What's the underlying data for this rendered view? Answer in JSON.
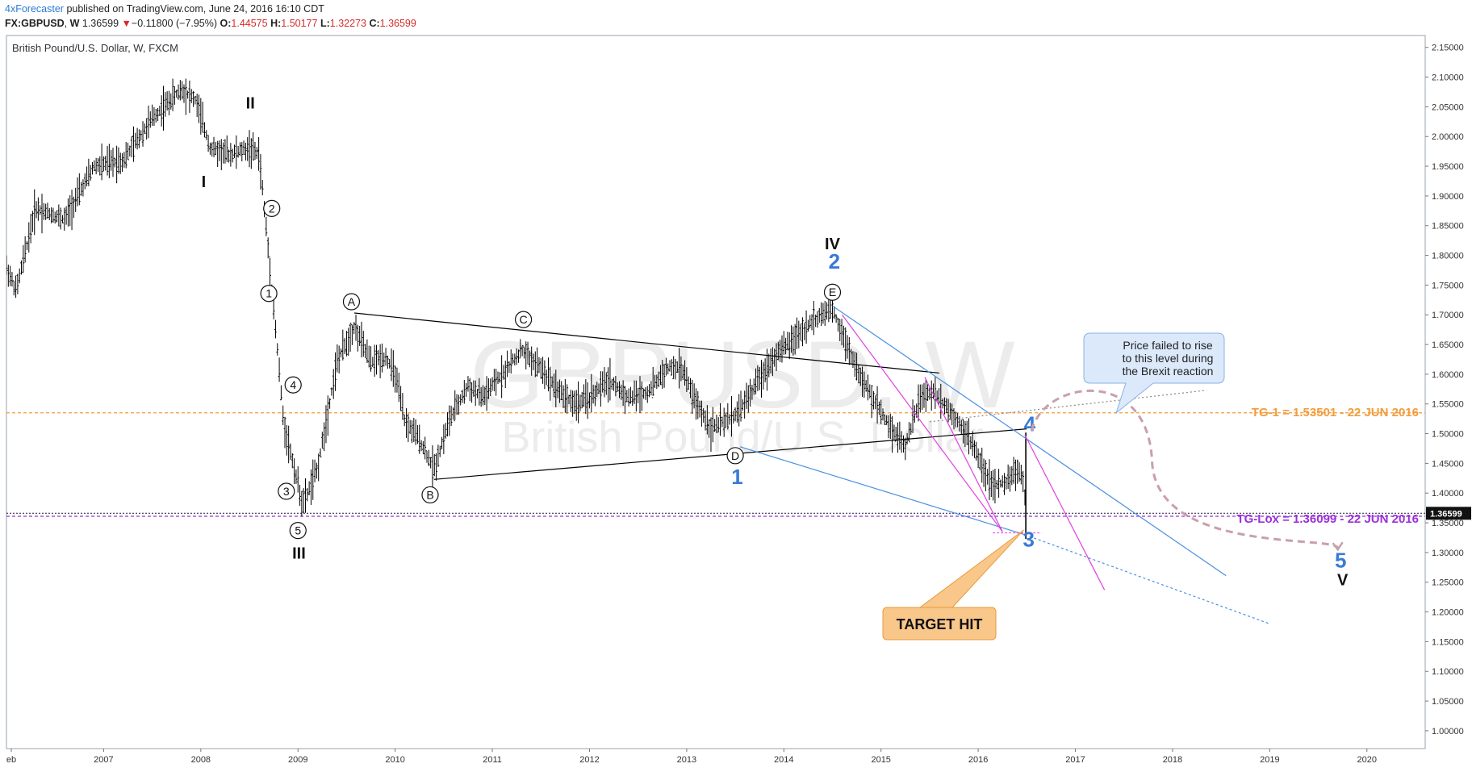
{
  "header": {
    "author": "4xForecaster",
    "published_text": "published on TradingView.com, June 24, 2016 16:10 CDT",
    "symbol": "FX:GBPUSD",
    "timeframe": "W",
    "last": "1.36599",
    "down_arrow": "▼",
    "change": "−0.11800 (−7.95%)",
    "o_label": "O:",
    "o_value": "1.44575",
    "h_label": "H:",
    "h_value": "1.50177",
    "l_label": "L:",
    "l_value": "1.32273",
    "c_label": "C:",
    "c_value": "1.36599"
  },
  "colors": {
    "candle": "#000000",
    "trendline_black": "#000000",
    "channel_blue": "#4a90e2",
    "magenta": "#e040e0",
    "orange_line": "#f39c3b",
    "purple_line": "#9b30d9",
    "wave_blue": "#3a7bd5",
    "arc": "#c9a0a8"
  },
  "chart_data": {
    "type": "candlestick",
    "title": "British Pound/U.S. Dollar, W, FXCM",
    "watermark_symbol": "GBPUSD, W",
    "watermark_name": "British Pound/U.S. Dollar",
    "xlabel": "",
    "ylabel": "",
    "x_range": [
      2006.0,
      2020.6
    ],
    "ylim": [
      0.97,
      2.17
    ],
    "x_ticks": [
      "eb",
      "2007",
      "2008",
      "2009",
      "2010",
      "2011",
      "2012",
      "2013",
      "2014",
      "2015",
      "2016",
      "2017",
      "2018",
      "2019",
      "2020"
    ],
    "x_tick_values": [
      2006.05,
      2007,
      2008,
      2009,
      2010,
      2011,
      2012,
      2013,
      2014,
      2015,
      2016,
      2017,
      2018,
      2019,
      2020
    ],
    "y_ticks": [
      "2.15000",
      "2.10000",
      "2.05000",
      "2.00000",
      "1.95000",
      "1.90000",
      "1.85000",
      "1.80000",
      "1.75000",
      "1.70000",
      "1.65000",
      "1.60000",
      "1.55000",
      "1.50000",
      "1.45000",
      "1.40000",
      "1.35000",
      "1.30000",
      "1.25000",
      "1.20000",
      "1.15000",
      "1.10000",
      "1.05000",
      "1.00000"
    ],
    "y_tick_values": [
      2.15,
      2.1,
      2.05,
      2.0,
      1.95,
      1.9,
      1.85,
      1.8,
      1.75,
      1.7,
      1.65,
      1.6,
      1.55,
      1.5,
      1.45,
      1.4,
      1.35,
      1.3,
      1.25,
      1.2,
      1.15,
      1.1,
      1.05,
      1.0
    ],
    "price_path": [
      [
        2006.0,
        1.78
      ],
      [
        2006.1,
        1.74
      ],
      [
        2006.3,
        1.88
      ],
      [
        2006.6,
        1.86
      ],
      [
        2006.9,
        1.95
      ],
      [
        2007.2,
        1.96
      ],
      [
        2007.5,
        2.03
      ],
      [
        2007.8,
        2.08
      ],
      [
        2007.95,
        2.06
      ],
      [
        2008.1,
        1.98
      ],
      [
        2008.3,
        1.97
      ],
      [
        2008.5,
        1.98
      ],
      [
        2008.6,
        1.97
      ],
      [
        2008.7,
        1.8
      ],
      [
        2008.8,
        1.62
      ],
      [
        2008.85,
        1.52
      ],
      [
        2008.95,
        1.45
      ],
      [
        2009.05,
        1.38
      ],
      [
        2009.2,
        1.44
      ],
      [
        2009.4,
        1.62
      ],
      [
        2009.58,
        1.68
      ],
      [
        2009.75,
        1.62
      ],
      [
        2009.9,
        1.63
      ],
      [
        2010.0,
        1.6
      ],
      [
        2010.1,
        1.52
      ],
      [
        2010.25,
        1.49
      ],
      [
        2010.4,
        1.44
      ],
      [
        2010.55,
        1.52
      ],
      [
        2010.75,
        1.58
      ],
      [
        2010.9,
        1.56
      ],
      [
        2011.1,
        1.6
      ],
      [
        2011.3,
        1.64
      ],
      [
        2011.5,
        1.61
      ],
      [
        2011.7,
        1.57
      ],
      [
        2011.85,
        1.55
      ],
      [
        2012.0,
        1.56
      ],
      [
        2012.2,
        1.59
      ],
      [
        2012.4,
        1.56
      ],
      [
        2012.6,
        1.57
      ],
      [
        2012.8,
        1.61
      ],
      [
        2012.95,
        1.61
      ],
      [
        2013.1,
        1.55
      ],
      [
        2013.25,
        1.51
      ],
      [
        2013.4,
        1.52
      ],
      [
        2013.55,
        1.54
      ],
      [
        2013.7,
        1.58
      ],
      [
        2013.9,
        1.63
      ],
      [
        2014.1,
        1.66
      ],
      [
        2014.3,
        1.69
      ],
      [
        2014.5,
        1.71
      ],
      [
        2014.65,
        1.65
      ],
      [
        2014.8,
        1.59
      ],
      [
        2014.95,
        1.55
      ],
      [
        2015.1,
        1.51
      ],
      [
        2015.25,
        1.48
      ],
      [
        2015.4,
        1.56
      ],
      [
        2015.55,
        1.57
      ],
      [
        2015.7,
        1.54
      ],
      [
        2015.85,
        1.51
      ],
      [
        2016.0,
        1.46
      ],
      [
        2016.15,
        1.41
      ],
      [
        2016.3,
        1.42
      ],
      [
        2016.4,
        1.44
      ],
      [
        2016.47,
        1.42
      ],
      [
        2016.49,
        1.37
      ]
    ],
    "levels": [
      {
        "label": "TG-1 = 1.53501 - 22 JUN 2016",
        "value": 1.53501,
        "color": "#f39c3b"
      },
      {
        "label": "TG-Lox = 1.36099 - 22 JUN 2016",
        "value": 1.36099,
        "color": "#9b30d9"
      }
    ],
    "last_price_label": "1.36599",
    "last_price": 1.36599,
    "wave_labels": {
      "primary": [
        {
          "text": "I",
          "x": 2008.03,
          "y": 1.915
        },
        {
          "text": "II",
          "x": 2008.51,
          "y": 2.047
        },
        {
          "text": "III",
          "x": 2009.01,
          "y": 1.29
        },
        {
          "text": "IV",
          "x": 2014.5,
          "y": 1.81
        },
        {
          "text": "V",
          "x": 2019.75,
          "y": 1.245
        }
      ],
      "circled": [
        {
          "text": "1",
          "x": 2008.7,
          "y": 1.736
        },
        {
          "text": "2",
          "x": 2008.73,
          "y": 1.879
        },
        {
          "text": "3",
          "x": 2008.88,
          "y": 1.403
        },
        {
          "text": "4",
          "x": 2008.95,
          "y": 1.582
        },
        {
          "text": "5",
          "x": 2009.0,
          "y": 1.337
        },
        {
          "text": "A",
          "x": 2009.55,
          "y": 1.722
        },
        {
          "text": "B",
          "x": 2010.36,
          "y": 1.397
        },
        {
          "text": "C",
          "x": 2011.32,
          "y": 1.692
        },
        {
          "text": "D",
          "x": 2013.5,
          "y": 1.463
        },
        {
          "text": "E",
          "x": 2014.5,
          "y": 1.738
        }
      ],
      "minor": [
        {
          "text": "1",
          "x": 2013.52,
          "y": 1.415
        },
        {
          "text": "2",
          "x": 2014.52,
          "y": 1.778
        },
        {
          "text": "3",
          "x": 2016.52,
          "y": 1.31
        },
        {
          "text": "4",
          "x": 2016.53,
          "y": 1.504
        },
        {
          "text": "5",
          "x": 2019.73,
          "y": 1.275
        }
      ]
    },
    "trendlines": [
      {
        "style": "black",
        "from": [
          2009.58,
          1.703
        ],
        "to": [
          2015.6,
          1.602
        ]
      },
      {
        "style": "black",
        "from": [
          2010.4,
          1.423
        ],
        "to": [
          2016.5,
          1.508
        ]
      },
      {
        "style": "blue",
        "from": [
          2014.5,
          1.715
        ],
        "to": [
          2018.55,
          1.261
        ]
      },
      {
        "style": "blue",
        "from": [
          2013.55,
          1.478
        ],
        "to": [
          2016.48,
          1.33
        ]
      },
      {
        "style": "blue-dotted",
        "from": [
          2016.48,
          1.33
        ],
        "to": [
          2019.0,
          1.18
        ]
      },
      {
        "style": "magenta",
        "from": [
          2014.6,
          1.7
        ],
        "to": [
          2016.25,
          1.335
        ]
      },
      {
        "style": "magenta",
        "from": [
          2015.45,
          1.595
        ],
        "to": [
          2016.25,
          1.335
        ]
      },
      {
        "style": "magenta",
        "from": [
          2016.48,
          1.498
        ],
        "to": [
          2017.3,
          1.237
        ]
      },
      {
        "style": "grey-dotted",
        "from": [
          2015.5,
          1.52
        ],
        "to": [
          2018.35,
          1.573
        ]
      }
    ],
    "annotations": [
      {
        "id": "callout",
        "lines": [
          "Price failed to rise",
          "to this level during",
          "the Brexit reaction"
        ]
      },
      {
        "id": "target",
        "text": "TARGET HIT"
      }
    ]
  }
}
